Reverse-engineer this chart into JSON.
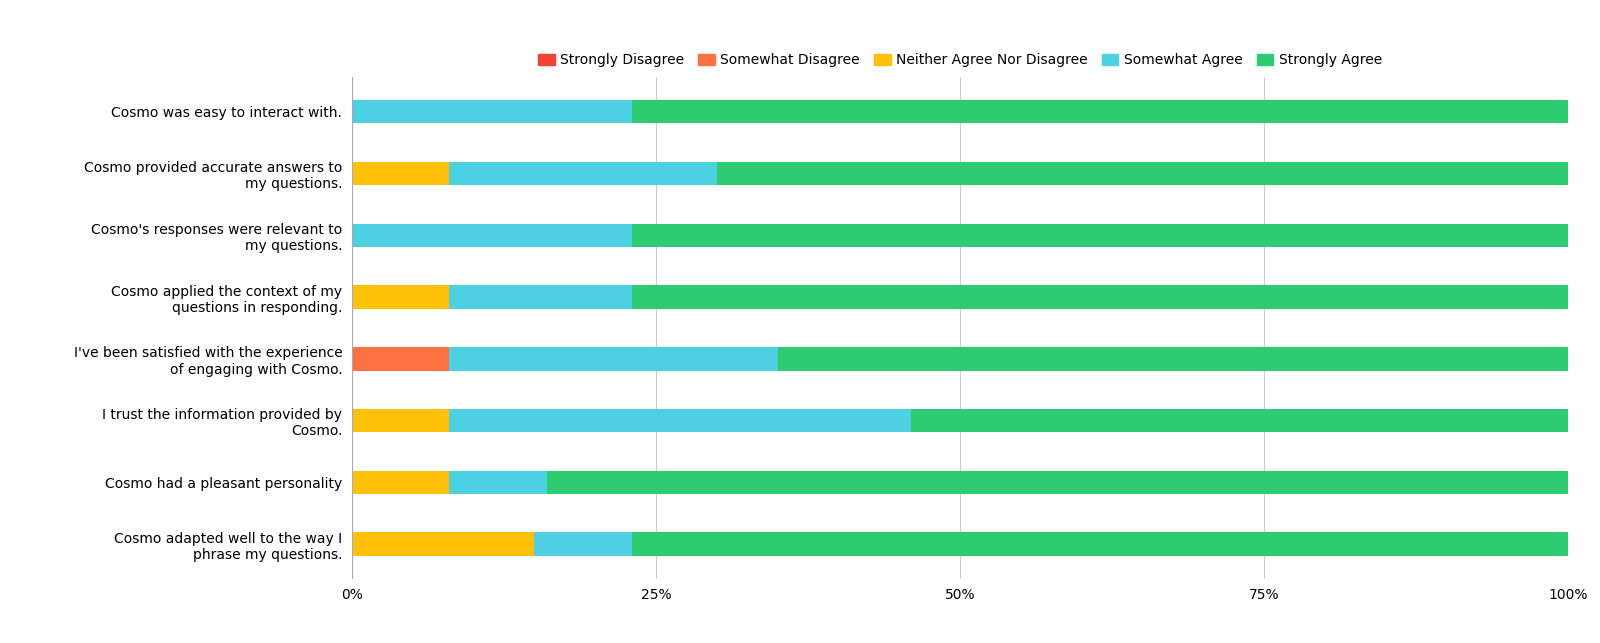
{
  "categories": [
    "Cosmo was easy to interact with.",
    "Cosmo provided accurate answers to\nmy questions.",
    "Cosmo's responses were relevant to\nmy questions.",
    "Cosmo applied the context of my\nquestions in responding.",
    "I've been satisfied with the experience\nof engaging with Cosmo.",
    "I trust the information provided by\nCosmo.",
    "Cosmo had a pleasant personality",
    "Cosmo adapted well to the way I\nphrase my questions."
  ],
  "legend_labels": [
    "Strongly Disagree",
    "Somewhat Disagree",
    "Neither Agree Nor Disagree",
    "Somewhat Agree",
    "Strongly Agree"
  ],
  "colors": [
    "#f44336",
    "#ff7043",
    "#ffc107",
    "#4dd0e1",
    "#2ecc71"
  ],
  "data": [
    [
      0,
      0,
      0,
      23,
      77
    ],
    [
      0,
      0,
      8,
      22,
      70
    ],
    [
      0,
      0,
      0,
      23,
      77
    ],
    [
      0,
      0,
      8,
      15,
      77
    ],
    [
      0,
      8,
      0,
      27,
      65
    ],
    [
      0,
      0,
      8,
      38,
      54
    ],
    [
      0,
      0,
      8,
      8,
      84
    ],
    [
      0,
      0,
      15,
      8,
      77
    ]
  ],
  "xlim": [
    0,
    100
  ],
  "xticks": [
    0,
    25,
    50,
    75,
    100
  ],
  "xticklabels": [
    "0%",
    "25%",
    "50%",
    "75%",
    "100%"
  ],
  "background_color": "#ffffff",
  "grid_color": "#cccccc",
  "figsize": [
    16.0,
    6.43
  ],
  "dpi": 100,
  "bar_height": 0.38,
  "label_fontsize": 10,
  "tick_fontsize": 10,
  "legend_fontsize": 10
}
